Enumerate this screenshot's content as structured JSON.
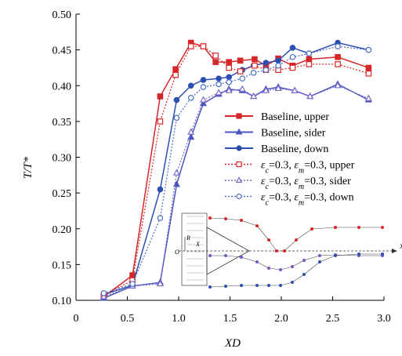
{
  "chart_data": {
    "type": "line",
    "xlabel": "XD",
    "ylabel": "T/T*",
    "xlim": [
      0,
      3.0
    ],
    "ylim": [
      0.1,
      0.5
    ],
    "x_ticks": [
      "0",
      "0.5",
      "1.0",
      "1.5",
      "2.0",
      "2.5",
      "3.0"
    ],
    "y_ticks": [
      "0.10",
      "0.15",
      "0.20",
      "0.25",
      "0.30",
      "0.35",
      "0.40",
      "0.45",
      "0.50"
    ],
    "legend_position": "center-right",
    "grid": false,
    "series": [
      {
        "name": "Baseline, upper",
        "color": "#d62728",
        "marker": "square",
        "filled": true,
        "dashed": false,
        "x": [
          0.27,
          0.55,
          0.82,
          0.97,
          1.12,
          1.24,
          1.36,
          1.49,
          1.6,
          1.74,
          1.85,
          1.97,
          2.11,
          2.27,
          2.55,
          2.85
        ],
        "y": [
          0.105,
          0.135,
          0.385,
          0.423,
          0.46,
          0.455,
          0.433,
          0.433,
          0.435,
          0.437,
          0.428,
          0.438,
          0.428,
          0.437,
          0.44,
          0.425
        ]
      },
      {
        "name": "Baseline, sider",
        "color": "#4a56c0",
        "marker": "triangle",
        "filled": true,
        "dashed": false,
        "x": [
          0.27,
          0.55,
          0.82,
          0.98,
          1.12,
          1.24,
          1.39,
          1.49,
          1.62,
          1.73,
          1.85,
          1.97,
          2.13,
          2.28,
          2.55,
          2.85
        ],
        "y": [
          0.103,
          0.12,
          0.125,
          0.262,
          0.328,
          0.375,
          0.388,
          0.395,
          0.393,
          0.385,
          0.395,
          0.398,
          0.393,
          0.385,
          0.402,
          0.38
        ]
      },
      {
        "name": "Baseline, down",
        "color": "#2a4fb0",
        "marker": "circle",
        "filled": true,
        "dashed": false,
        "x": [
          0.27,
          0.55,
          0.82,
          0.98,
          1.12,
          1.24,
          1.39,
          1.49,
          1.62,
          1.73,
          1.85,
          1.97,
          2.11,
          2.27,
          2.55,
          2.85
        ],
        "y": [
          0.108,
          0.121,
          0.255,
          0.38,
          0.4,
          0.408,
          0.41,
          0.412,
          0.422,
          0.428,
          0.432,
          0.435,
          0.453,
          0.445,
          0.46,
          0.45
        ]
      },
      {
        "name": "εc=0.3, εm=0.3, upper",
        "color": "#d62728",
        "marker": "square",
        "filled": false,
        "dashed": true,
        "x": [
          0.27,
          0.55,
          0.82,
          0.97,
          1.12,
          1.24,
          1.36,
          1.49,
          1.6,
          1.74,
          1.85,
          1.97,
          2.11,
          2.27,
          2.55,
          2.85
        ],
        "y": [
          0.107,
          0.128,
          0.35,
          0.415,
          0.455,
          0.455,
          0.442,
          0.425,
          0.42,
          0.428,
          0.422,
          0.422,
          0.425,
          0.43,
          0.43,
          0.417
        ]
      },
      {
        "name": "εc=0.3, εm=0.3, sider",
        "color": "#7b68c8",
        "marker": "triangle",
        "filled": false,
        "dashed": true,
        "x": [
          0.27,
          0.55,
          0.82,
          0.98,
          1.12,
          1.24,
          1.39,
          1.49,
          1.62,
          1.73,
          1.85,
          1.97,
          2.13,
          2.28,
          2.55,
          2.85
        ],
        "y": [
          0.105,
          0.12,
          0.123,
          0.278,
          0.335,
          0.38,
          0.39,
          0.393,
          0.395,
          0.385,
          0.393,
          0.396,
          0.393,
          0.385,
          0.4,
          0.382
        ]
      },
      {
        "name": "εc=0.3, εm=0.3, down",
        "color": "#4a6cc8",
        "marker": "circle",
        "filled": false,
        "dashed": true,
        "x": [
          0.27,
          0.55,
          0.82,
          0.98,
          1.12,
          1.24,
          1.39,
          1.49,
          1.62,
          1.73,
          1.85,
          1.97,
          2.11,
          2.27,
          2.55,
          2.85
        ],
        "y": [
          0.11,
          0.123,
          0.215,
          0.355,
          0.383,
          0.398,
          0.402,
          0.405,
          0.41,
          0.418,
          0.422,
          0.428,
          0.44,
          0.445,
          0.455,
          0.45
        ]
      }
    ],
    "legend": [
      {
        "series": 0,
        "parts": [
          {
            "t": "Baseline, upper"
          }
        ]
      },
      {
        "series": 1,
        "parts": [
          {
            "t": "Baseline, sider"
          }
        ]
      },
      {
        "series": 2,
        "parts": [
          {
            "t": "Baseline, down"
          }
        ]
      },
      {
        "series": 3,
        "parts": [
          {
            "t": "ε",
            "i": true
          },
          {
            "t": "c",
            "sub": true,
            "i": true
          },
          {
            "t": "=0.3, "
          },
          {
            "t": "ε",
            "i": true
          },
          {
            "t": "m",
            "sub": true,
            "i": true
          },
          {
            "t": "=0.3, upper"
          }
        ]
      },
      {
        "series": 4,
        "parts": [
          {
            "t": "ε",
            "i": true
          },
          {
            "t": "c",
            "sub": true,
            "i": true
          },
          {
            "t": "=0.3, "
          },
          {
            "t": "ε",
            "i": true
          },
          {
            "t": "m",
            "sub": true,
            "i": true
          },
          {
            "t": "=0.3, sider"
          }
        ]
      },
      {
        "series": 5,
        "parts": [
          {
            "t": "ε",
            "i": true
          },
          {
            "t": "c",
            "sub": true,
            "i": true
          },
          {
            "t": "=0.3, "
          },
          {
            "t": "ε",
            "i": true
          },
          {
            "t": "m",
            "sub": true,
            "i": true
          },
          {
            "t": "=0.3, down"
          }
        ]
      }
    ],
    "inset": {
      "labels": [
        "R",
        "X",
        "O",
        "X"
      ]
    }
  }
}
